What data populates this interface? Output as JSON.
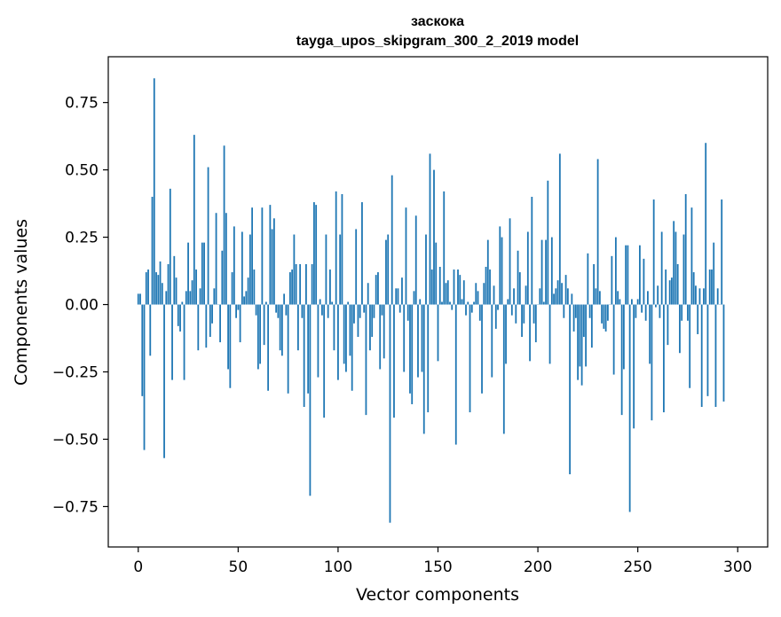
{
  "chart_data": {
    "type": "bar",
    "title": "заскока",
    "subtitle": "tayga_upos_skipgram_300_2_2019 model",
    "xlabel": "Vector components",
    "ylabel": "Components values",
    "xlim": [
      -15,
      315
    ],
    "ylim": [
      -0.9,
      0.92
    ],
    "xticks": [
      0,
      50,
      100,
      150,
      200,
      250,
      300
    ],
    "xtick_labels": [
      "0",
      "50",
      "100",
      "150",
      "200",
      "250",
      "300"
    ],
    "yticks": [
      -0.75,
      -0.5,
      -0.25,
      0.0,
      0.25,
      0.5,
      0.75
    ],
    "ytick_labels": [
      "−0.75",
      "−0.50",
      "−0.25",
      "0.00",
      "0.25",
      "0.50",
      "0.75"
    ],
    "grid": false,
    "bar_color": "#1f77b4",
    "values": [
      0.04,
      0.04,
      -0.34,
      -0.54,
      0.12,
      0.13,
      -0.19,
      0.4,
      0.84,
      0.12,
      0.11,
      0.16,
      0.08,
      -0.57,
      0.05,
      0.15,
      0.43,
      -0.28,
      0.18,
      0.1,
      -0.08,
      -0.1,
      0.01,
      -0.28,
      0.05,
      0.23,
      0.05,
      0.09,
      0.63,
      0.13,
      -0.17,
      0.06,
      0.23,
      0.23,
      -0.16,
      0.51,
      -0.12,
      -0.07,
      0.06,
      0.34,
      0.0,
      -0.14,
      0.2,
      0.59,
      0.34,
      -0.24,
      -0.31,
      0.12,
      0.29,
      -0.05,
      -0.02,
      -0.14,
      0.27,
      0.03,
      0.05,
      0.1,
      0.26,
      0.36,
      0.13,
      -0.04,
      -0.24,
      -0.22,
      0.36,
      -0.15,
      0.01,
      -0.32,
      0.37,
      0.28,
      0.32,
      -0.03,
      -0.05,
      -0.17,
      -0.19,
      0.04,
      -0.04,
      -0.33,
      0.12,
      0.13,
      0.26,
      0.15,
      -0.17,
      0.15,
      -0.05,
      -0.38,
      0.15,
      -0.33,
      -0.71,
      0.15,
      0.38,
      0.37,
      -0.27,
      0.02,
      -0.04,
      -0.42,
      0.26,
      -0.05,
      0.13,
      0.01,
      -0.17,
      0.42,
      -0.28,
      0.26,
      0.41,
      -0.22,
      -0.25,
      0.01,
      -0.19,
      -0.32,
      -0.07,
      0.28,
      -0.12,
      -0.05,
      0.38,
      -0.03,
      -0.41,
      0.08,
      -0.17,
      -0.12,
      -0.05,
      0.11,
      0.12,
      -0.24,
      -0.04,
      -0.2,
      0.24,
      0.26,
      -0.81,
      0.48,
      -0.42,
      0.06,
      0.06,
      -0.03,
      0.1,
      -0.25,
      0.36,
      -0.06,
      -0.33,
      -0.37,
      0.05,
      0.33,
      -0.27,
      0.02,
      -0.25,
      -0.48,
      0.26,
      -0.4,
      0.56,
      0.13,
      0.5,
      0.23,
      -0.21,
      0.14,
      0.01,
      0.42,
      0.08,
      0.09,
      0.01,
      -0.02,
      0.13,
      -0.52,
      0.13,
      0.11,
      0.02,
      0.09,
      -0.04,
      0.01,
      -0.4,
      -0.03,
      0.01,
      0.08,
      0.05,
      -0.06,
      -0.33,
      0.08,
      0.14,
      0.24,
      0.13,
      -0.27,
      0.07,
      -0.09,
      -0.02,
      0.29,
      0.25,
      -0.48,
      -0.22,
      0.02,
      0.32,
      -0.04,
      0.06,
      -0.07,
      0.2,
      0.12,
      -0.12,
      -0.07,
      0.07,
      0.27,
      -0.21,
      0.4,
      -0.07,
      -0.14,
      0.0,
      0.06,
      0.24,
      0.01,
      0.24,
      0.46,
      -0.22,
      0.25,
      0.04,
      0.06,
      0.09,
      0.56,
      0.08,
      -0.05,
      0.11,
      0.06,
      -0.63,
      0.04,
      -0.1,
      -0.05,
      -0.28,
      -0.23,
      -0.3,
      -0.12,
      -0.23,
      0.19,
      -0.05,
      -0.16,
      0.15,
      0.06,
      0.54,
      0.05,
      -0.07,
      -0.09,
      -0.1,
      -0.06,
      0.0,
      0.18,
      -0.26,
      0.25,
      0.05,
      0.02,
      -0.41,
      -0.24,
      0.22,
      0.22,
      -0.77,
      0.02,
      -0.46,
      -0.05,
      0.02,
      0.22,
      -0.03,
      0.17,
      -0.06,
      0.05,
      -0.22,
      -0.43,
      0.39,
      -0.01,
      0.07,
      -0.05,
      0.27,
      -0.4,
      0.13,
      -0.15,
      0.09,
      0.1,
      0.31,
      0.27,
      0.15,
      -0.18,
      -0.06,
      0.26,
      0.41,
      -0.06,
      -0.31,
      0.36,
      0.12,
      0.07,
      -0.11,
      0.06,
      -0.38,
      0.06,
      0.6,
      -0.34,
      0.13,
      0.13,
      0.23,
      -0.38,
      0.06,
      0.0,
      0.39,
      -0.36
    ]
  }
}
